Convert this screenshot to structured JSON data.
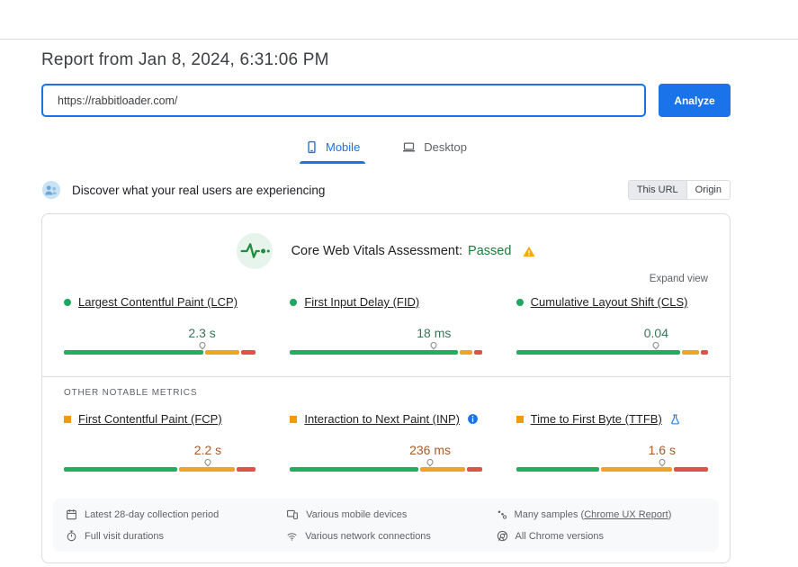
{
  "page": {
    "title": "Report from Jan 8, 2024, 6:31:06 PM"
  },
  "url_bar": {
    "value": "https://rabbitloader.com/",
    "analyze_label": "Analyze"
  },
  "tabs": {
    "mobile": "Mobile",
    "desktop": "Desktop"
  },
  "field_section": {
    "heading": "Discover what your real users are experiencing",
    "scope": {
      "this_url": "This URL",
      "origin": "Origin"
    }
  },
  "assessment": {
    "label": "Core Web Vitals Assessment:",
    "result": "Passed",
    "expand": "Expand view"
  },
  "core_metrics": [
    {
      "label": "Largest Contentful Paint (LCP)",
      "value": "2.3 s",
      "status": "good",
      "bar": {
        "good": 74,
        "ni": 18,
        "poor": 8,
        "marker": 72
      }
    },
    {
      "label": "First Input Delay (FID)",
      "value": "18 ms",
      "status": "good",
      "bar": {
        "good": 89,
        "ni": 7,
        "poor": 4,
        "marker": 75
      }
    },
    {
      "label": "Cumulative Layout Shift (CLS)",
      "value": "0.04",
      "status": "good",
      "bar": {
        "good": 87,
        "ni": 9,
        "poor": 4,
        "marker": 73
      }
    }
  ],
  "other_metrics_heading": "OTHER NOTABLE METRICS",
  "other_metrics": [
    {
      "label": "First Contentful Paint (FCP)",
      "value": "2.2 s",
      "status": "ni",
      "bar": {
        "good": 60,
        "ni": 30,
        "poor": 10,
        "marker": 75
      }
    },
    {
      "label": "Interaction to Next Paint (INP)",
      "value": "236 ms",
      "status": "ni",
      "bar": {
        "good": 68,
        "ni": 24,
        "poor": 8,
        "marker": 73
      }
    },
    {
      "label": "Time to First Byte (TTFB)",
      "value": "1.6 s",
      "status": "ni",
      "bar": {
        "good": 44,
        "ni": 38,
        "poor": 18,
        "marker": 76
      }
    }
  ],
  "footer": {
    "columns": [
      [
        {
          "icon": "calendar-icon",
          "text": "Latest 28-day collection period"
        },
        {
          "icon": "stopwatch-icon",
          "text": "Full visit durations"
        }
      ],
      [
        {
          "icon": "devices-icon",
          "text": "Various mobile devices"
        },
        {
          "icon": "network-icon",
          "text": "Various network connections"
        }
      ],
      [
        {
          "icon": "samples-icon",
          "prefix": "Many samples (",
          "link": "Chrome UX Report",
          "suffix": ")"
        },
        {
          "icon": "chrome-icon",
          "text": "All Chrome versions"
        }
      ]
    ]
  },
  "colors": {
    "accent": "#1a73e8",
    "good_bar": "#23ad61",
    "ni_bar": "#f0a32b",
    "poor_bar": "#dd5347",
    "passed_text": "#188038",
    "warning": "#f9ab00"
  }
}
